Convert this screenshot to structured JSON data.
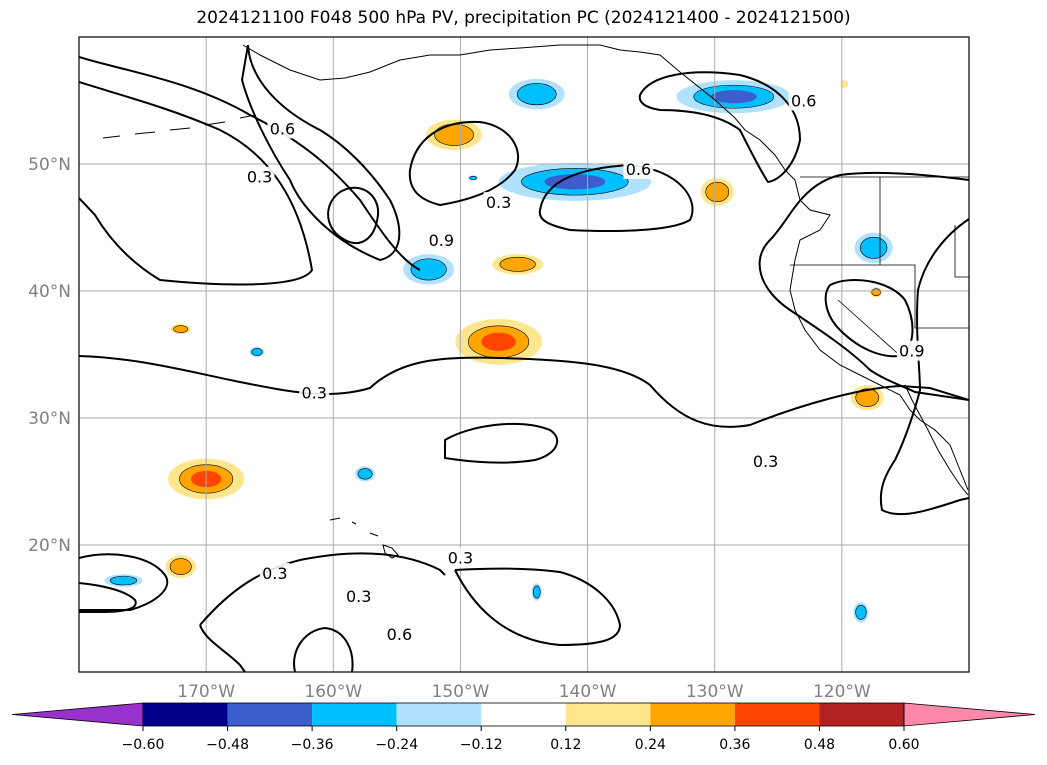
{
  "title": "2024121100 F048 500 hPa PV, precipitation PC (2024121400 - 2024121500)",
  "chart_data": {
    "type": "map-contour",
    "title": "2024121100 F048 500 hPa PV, precipitation PC (2024121400 - 2024121500)",
    "lon_range": [
      -180,
      -110
    ],
    "lat_range": [
      10,
      60
    ],
    "grid": true,
    "lon_ticks": [
      {
        "value": -170,
        "label": "170°W"
      },
      {
        "value": -160,
        "label": "160°W"
      },
      {
        "value": -150,
        "label": "150°W"
      },
      {
        "value": -140,
        "label": "140°W"
      },
      {
        "value": -130,
        "label": "130°W"
      },
      {
        "value": -120,
        "label": "120°W"
      }
    ],
    "lat_ticks": [
      {
        "value": 20,
        "label": "20°N"
      },
      {
        "value": 30,
        "label": "30°N"
      },
      {
        "value": 40,
        "label": "40°N"
      },
      {
        "value": 50,
        "label": "50°N"
      }
    ],
    "contour_levels": [
      "0.3",
      "0.6",
      "0.9"
    ],
    "contour_labels": [
      {
        "text": "0.3",
        "lon": -165.8,
        "lat": 49.0
      },
      {
        "text": "0.6",
        "lon": -164.0,
        "lat": 52.8
      },
      {
        "text": "0.9",
        "lon": -151.5,
        "lat": 44.0
      },
      {
        "text": "0.3",
        "lon": -147.0,
        "lat": 47.0
      },
      {
        "text": "0.6",
        "lon": -136.0,
        "lat": 49.6
      },
      {
        "text": "0.6",
        "lon": -123.0,
        "lat": 55.0
      },
      {
        "text": "0.3",
        "lon": -161.5,
        "lat": 32.0
      },
      {
        "text": "0.3",
        "lon": -126.0,
        "lat": 26.6
      },
      {
        "text": "0.3",
        "lon": -150.0,
        "lat": 19.0
      },
      {
        "text": "0.6",
        "lon": -154.8,
        "lat": 13.0
      },
      {
        "text": "0.3",
        "lon": -158.0,
        "lat": 16.0
      },
      {
        "text": "0.3",
        "lon": -164.6,
        "lat": 17.8
      },
      {
        "text": "0.9",
        "lon": -114.5,
        "lat": 35.3
      }
    ],
    "colorbar": {
      "ticks": [
        "−0.60",
        "−0.48",
        "−0.36",
        "−0.24",
        "−0.12",
        "0.12",
        "0.24",
        "0.36",
        "0.48",
        "0.60"
      ],
      "colors": [
        "#9932cc",
        "#00008b",
        "#3a5fcd",
        "#00bfff",
        "#b0e2ff",
        "#ffffff",
        "#ffe68c",
        "#ffa500",
        "#ff4500",
        "#b22222",
        "#ff88aa"
      ]
    },
    "precip_blobs": [
      {
        "lon": -144.0,
        "lat": 55.5,
        "rx": 2.2,
        "ry": 1.2,
        "level": -0.36
      },
      {
        "lon": -128.5,
        "lat": 55.3,
        "rx": 4.5,
        "ry": 1.3,
        "level": -0.48
      },
      {
        "lon": -141.0,
        "lat": 48.6,
        "rx": 6.0,
        "ry": 1.5,
        "level": -0.48
      },
      {
        "lon": -152.5,
        "lat": 41.7,
        "rx": 2.0,
        "ry": 1.2,
        "level": -0.36
      },
      {
        "lon": -117.5,
        "lat": 43.4,
        "rx": 1.5,
        "ry": 1.2,
        "level": -0.24
      },
      {
        "lon": -166.0,
        "lat": 35.2,
        "rx": 0.6,
        "ry": 0.4,
        "level": -0.24
      },
      {
        "lon": -157.5,
        "lat": 25.6,
        "rx": 0.8,
        "ry": 0.6,
        "level": -0.36
      },
      {
        "lon": -144.0,
        "lat": 16.3,
        "rx": 0.4,
        "ry": 0.7,
        "level": -0.36
      },
      {
        "lon": -118.5,
        "lat": 14.7,
        "rx": 0.6,
        "ry": 0.8,
        "level": -0.36
      },
      {
        "lon": -176.5,
        "lat": 17.2,
        "rx": 1.5,
        "ry": 0.5,
        "level": -0.36
      },
      {
        "lon": -149.0,
        "lat": 48.9,
        "rx": 0.4,
        "ry": 0.2,
        "level": -0.24
      },
      {
        "lon": -147.0,
        "lat": 36.0,
        "rx": 3.4,
        "ry": 1.8,
        "level": 0.36
      },
      {
        "lon": -150.5,
        "lat": 52.3,
        "rx": 2.2,
        "ry": 1.2,
        "level": 0.24
      },
      {
        "lon": -145.5,
        "lat": 42.1,
        "rx": 2.0,
        "ry": 0.8,
        "level": 0.24
      },
      {
        "lon": -170.0,
        "lat": 25.2,
        "rx": 3.0,
        "ry": 1.6,
        "level": 0.36
      },
      {
        "lon": -172.0,
        "lat": 37.0,
        "rx": 0.8,
        "ry": 0.4,
        "level": 0.24
      },
      {
        "lon": -172.0,
        "lat": 18.3,
        "rx": 1.2,
        "ry": 0.9,
        "level": 0.24
      },
      {
        "lon": -118.0,
        "lat": 31.6,
        "rx": 1.3,
        "ry": 1.0,
        "level": 0.24
      },
      {
        "lon": -117.3,
        "lat": 39.9,
        "rx": 0.5,
        "ry": 0.4,
        "level": 0.24
      },
      {
        "lon": -119.8,
        "lat": 56.3,
        "rx": 0.3,
        "ry": 0.3,
        "level": 0.12
      },
      {
        "lon": -129.8,
        "lat": 47.8,
        "rx": 1.3,
        "ry": 1.1,
        "level": 0.24
      }
    ]
  }
}
